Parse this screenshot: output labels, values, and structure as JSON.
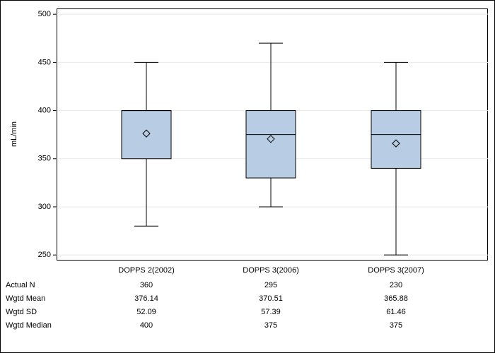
{
  "chart_data": {
    "type": "box",
    "ylabel": "mL/min",
    "categories": [
      "DOPPS 2(2002)",
      "DOPPS 3(2006)",
      "DOPPS 3(2007)"
    ],
    "boxes": [
      {
        "low": 280,
        "q1": 350,
        "q3": 400,
        "high": 450
      },
      {
        "low": 300,
        "q1": 330,
        "q3": 400,
        "high": 470
      },
      {
        "low": 250,
        "q1": 340,
        "q3": 400,
        "high": 450
      }
    ],
    "color": "#b8cce4",
    "ylim": [
      245,
      506
    ],
    "yticks": [
      250,
      300,
      350,
      400,
      450,
      500
    ],
    "grid": true,
    "table": {
      "rows": [
        {
          "label": "Actual N",
          "values": [
            360,
            295,
            230
          ]
        },
        {
          "label": "Wgtd Mean",
          "values": [
            376.14,
            370.51,
            365.88
          ]
        },
        {
          "label": "Wgtd SD",
          "values": [
            52.09,
            57.39,
            61.46
          ]
        },
        {
          "label": "Wgtd Median",
          "values": [
            400,
            375,
            375
          ]
        }
      ]
    }
  }
}
